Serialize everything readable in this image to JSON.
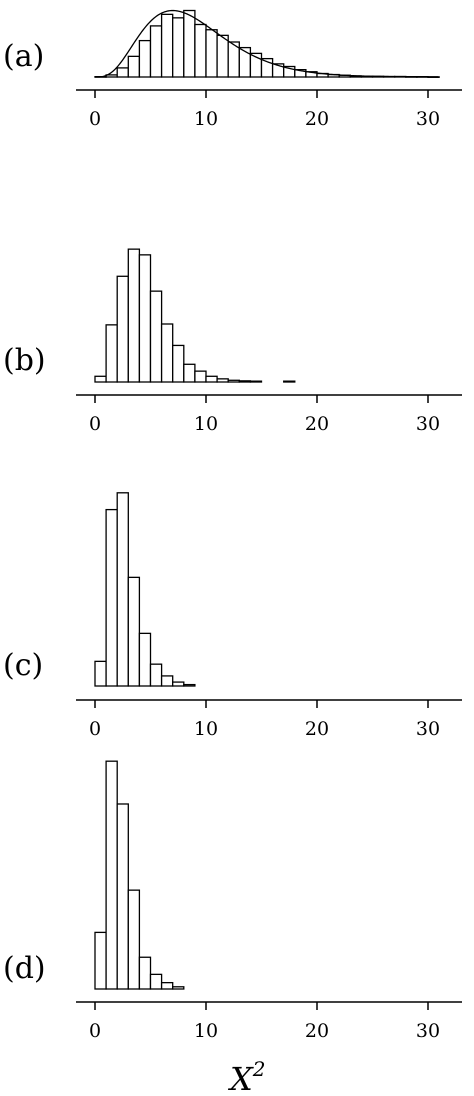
{
  "x_title": {
    "main": "X",
    "sup": "2"
  },
  "chart_data": [
    {
      "type": "bar",
      "label": "(a)",
      "bin_width": 1,
      "bins": [
        {
          "x": 0,
          "v": 0.002
        },
        {
          "x": 1,
          "v": 0.012
        },
        {
          "x": 2,
          "v": 0.052
        },
        {
          "x": 3,
          "v": 0.118
        },
        {
          "x": 4,
          "v": 0.208
        },
        {
          "x": 5,
          "v": 0.292
        },
        {
          "x": 6,
          "v": 0.358
        },
        {
          "x": 7,
          "v": 0.338
        },
        {
          "x": 8,
          "v": 0.38
        },
        {
          "x": 9,
          "v": 0.3
        },
        {
          "x": 10,
          "v": 0.27
        },
        {
          "x": 11,
          "v": 0.238
        },
        {
          "x": 12,
          "v": 0.2
        },
        {
          "x": 13,
          "v": 0.168
        },
        {
          "x": 14,
          "v": 0.135
        },
        {
          "x": 15,
          "v": 0.105
        },
        {
          "x": 16,
          "v": 0.075
        },
        {
          "x": 17,
          "v": 0.06
        },
        {
          "x": 18,
          "v": 0.042
        },
        {
          "x": 19,
          "v": 0.03
        },
        {
          "x": 20,
          "v": 0.02
        },
        {
          "x": 21,
          "v": 0.014
        },
        {
          "x": 22,
          "v": 0.01
        },
        {
          "x": 23,
          "v": 0.006
        },
        {
          "x": 24,
          "v": 0.004
        },
        {
          "x": 25,
          "v": 0.004
        },
        {
          "x": 26,
          "v": 0.003
        },
        {
          "x": 27,
          "v": 0.003
        },
        {
          "x": 28,
          "v": 0.002
        },
        {
          "x": 29,
          "v": 0.002
        },
        {
          "x": 30,
          "v": 0.001
        }
      ],
      "density_curve": {
        "dof": 9
      },
      "xlim": [
        -1.5,
        33
      ],
      "ylim": [
        0,
        0.4
      ],
      "xticks": [
        0,
        10,
        20,
        30
      ],
      "xtick_labels": [
        "0",
        "10",
        "20",
        "30"
      ]
    },
    {
      "type": "bar",
      "label": "(b)",
      "bin_width": 1,
      "bins": [
        {
          "x": 0,
          "v": 0.02
        },
        {
          "x": 1,
          "v": 0.2
        },
        {
          "x": 2,
          "v": 0.37
        },
        {
          "x": 3,
          "v": 0.465
        },
        {
          "x": 4,
          "v": 0.445
        },
        {
          "x": 5,
          "v": 0.318
        },
        {
          "x": 6,
          "v": 0.203
        },
        {
          "x": 7,
          "v": 0.128
        },
        {
          "x": 8,
          "v": 0.062
        },
        {
          "x": 9,
          "v": 0.038
        },
        {
          "x": 10,
          "v": 0.02
        },
        {
          "x": 11,
          "v": 0.011
        },
        {
          "x": 12,
          "v": 0.006
        },
        {
          "x": 13,
          "v": 0.004
        },
        {
          "x": 14,
          "v": 0.003
        },
        {
          "x": 17,
          "v": 0.003
        }
      ],
      "xlim": [
        -1.5,
        33
      ],
      "ylim": [
        0,
        0.49
      ],
      "xticks": [
        0,
        10,
        20,
        30
      ],
      "xtick_labels": [
        "0",
        "10",
        "20",
        "30"
      ]
    },
    {
      "type": "bar",
      "label": "(c)",
      "bin_width": 1,
      "bins": [
        {
          "x": 0,
          "v": 0.088
        },
        {
          "x": 1,
          "v": 0.63
        },
        {
          "x": 2,
          "v": 0.69
        },
        {
          "x": 3,
          "v": 0.388
        },
        {
          "x": 4,
          "v": 0.188
        },
        {
          "x": 5,
          "v": 0.078
        },
        {
          "x": 6,
          "v": 0.036
        },
        {
          "x": 7,
          "v": 0.014
        },
        {
          "x": 8,
          "v": 0.005
        }
      ],
      "xlim": [
        -1.5,
        33
      ],
      "ylim": [
        0,
        0.75
      ],
      "xticks": [
        0,
        10,
        20,
        30
      ],
      "xtick_labels": [
        "0",
        "10",
        "20",
        "30"
      ]
    },
    {
      "type": "bar",
      "label": "(d)",
      "bin_width": 1,
      "bins": [
        {
          "x": 0,
          "v": 0.205
        },
        {
          "x": 1,
          "v": 0.825
        },
        {
          "x": 2,
          "v": 0.67
        },
        {
          "x": 3,
          "v": 0.358
        },
        {
          "x": 4,
          "v": 0.115
        },
        {
          "x": 5,
          "v": 0.053
        },
        {
          "x": 6,
          "v": 0.023
        },
        {
          "x": 7,
          "v": 0.008
        }
      ],
      "xlim": [
        -1.5,
        33
      ],
      "ylim": [
        0,
        0.88
      ],
      "xticks": [
        0,
        10,
        20,
        30
      ],
      "xtick_labels": [
        "0",
        "10",
        "20",
        "30"
      ]
    }
  ]
}
